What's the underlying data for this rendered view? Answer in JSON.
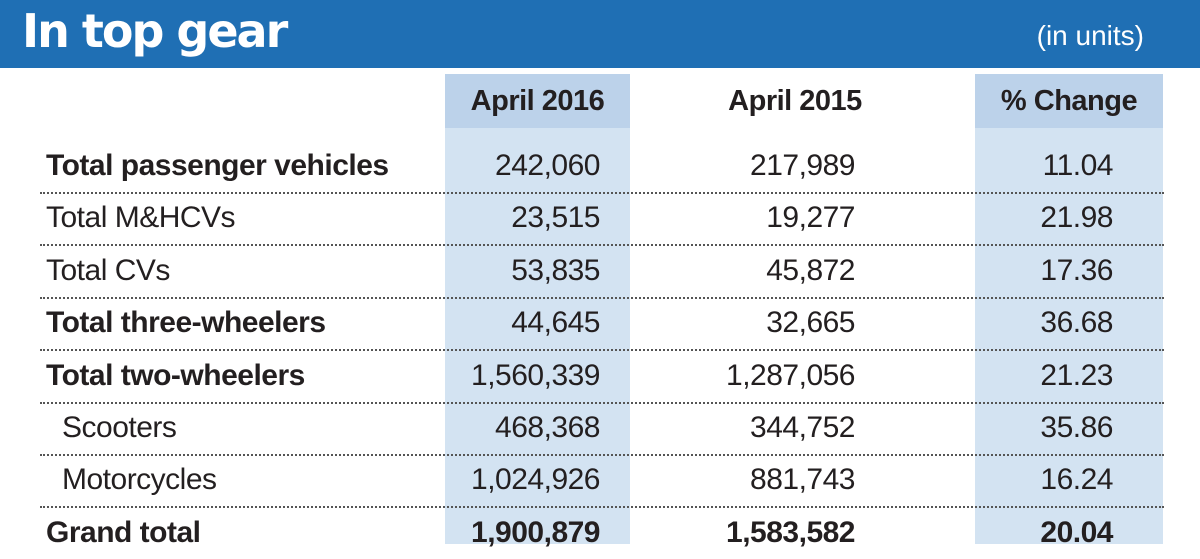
{
  "header": {
    "title": "In top gear",
    "units": "(in units)",
    "bg_color": "#1f6fb4"
  },
  "chart_data": {
    "type": "table",
    "columns": [
      "April 2016",
      "April 2015",
      "% Change"
    ],
    "rows": [
      {
        "label": "Total passenger vehicles",
        "bold": true,
        "indent": false,
        "values": [
          "242,060",
          "217,989",
          "11.04"
        ]
      },
      {
        "label": "Total M&HCVs",
        "bold": false,
        "indent": false,
        "values": [
          "23,515",
          "19,277",
          "21.98"
        ]
      },
      {
        "label": "Total CVs",
        "bold": false,
        "indent": false,
        "values": [
          "53,835",
          "45,872",
          "17.36"
        ]
      },
      {
        "label": "Total three-wheelers",
        "bold": true,
        "indent": false,
        "values": [
          "44,645",
          "32,665",
          "36.68"
        ]
      },
      {
        "label": "Total two-wheelers",
        "bold": true,
        "indent": false,
        "values": [
          "1,560,339",
          "1,287,056",
          "21.23"
        ]
      },
      {
        "label": "Scooters",
        "bold": false,
        "indent": true,
        "values": [
          "468,368",
          "344,752",
          "35.86"
        ]
      },
      {
        "label": "Motorcycles",
        "bold": false,
        "indent": true,
        "values": [
          "1,024,926",
          "881,743",
          "16.24"
        ]
      },
      {
        "label": "Grand total",
        "bold": true,
        "indent": false,
        "values": [
          "1,900,879",
          "1,583,582",
          "20.04"
        ]
      }
    ]
  }
}
